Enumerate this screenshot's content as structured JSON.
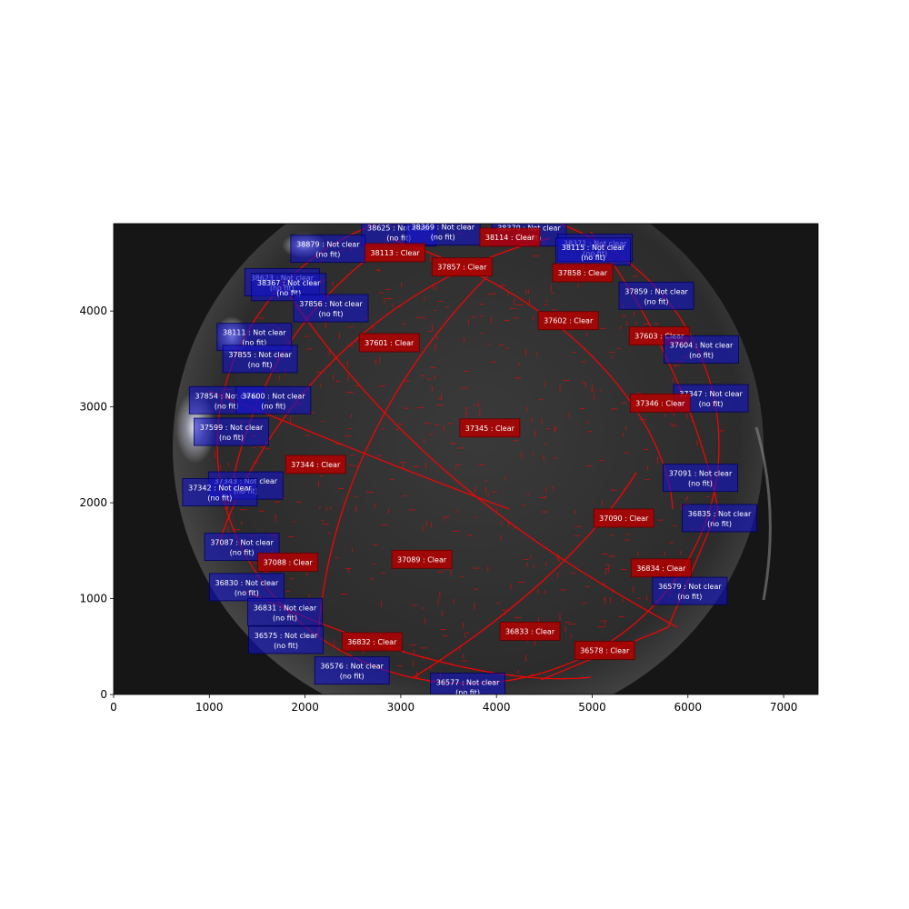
{
  "chart_data": {
    "type": "scatter",
    "title": "",
    "xlabel": "",
    "ylabel": "",
    "xlim": [
      0,
      7360
    ],
    "ylim": [
      0,
      4912
    ],
    "x_ticks": [
      0,
      1000,
      2000,
      3000,
      4000,
      5000,
      6000,
      7000
    ],
    "y_ticks": [
      0,
      1000,
      2000,
      3000,
      4000
    ],
    "grid": false,
    "colors": {
      "clear": "#b40000",
      "not_clear": "#1414c8",
      "grid_lines": "#ff0000",
      "sky_background": "#303030",
      "frame_background": "#161616"
    },
    "label_template": "{id} : {status}",
    "no_fit_text": "(no fit)",
    "labels": [
      {
        "id": "38625",
        "status": "Not clear",
        "fit": false,
        "x": 2980,
        "y": 4820
      },
      {
        "id": "38369",
        "status": "Not clear",
        "fit": false,
        "x": 3440,
        "y": 4830
      },
      {
        "id": "38370",
        "status": "Not clear",
        "fit": false,
        "x": 4340,
        "y": 4820
      },
      {
        "id": "38114",
        "status": "Clear",
        "fit": true,
        "x": 4140,
        "y": 4770
      },
      {
        "id": "38879",
        "status": "Not clear",
        "fit": false,
        "x": 2240,
        "y": 4650
      },
      {
        "id": "38113",
        "status": "Clear",
        "fit": true,
        "x": 2940,
        "y": 4610
      },
      {
        "id": "38371",
        "status": "Not clear",
        "fit": false,
        "x": 5030,
        "y": 4660
      },
      {
        "id": "38115",
        "status": "Not clear",
        "fit": false,
        "x": 5010,
        "y": 4620
      },
      {
        "id": "37857",
        "status": "Clear",
        "fit": true,
        "x": 3640,
        "y": 4460
      },
      {
        "id": "37858",
        "status": "Clear",
        "fit": true,
        "x": 4900,
        "y": 4400
      },
      {
        "id": "38623",
        "status": "Not clear",
        "fit": false,
        "x": 1760,
        "y": 4300
      },
      {
        "id": "38367",
        "status": "Not clear",
        "fit": false,
        "x": 1830,
        "y": 4250
      },
      {
        "id": "37859",
        "status": "Not clear",
        "fit": false,
        "x": 5670,
        "y": 4160
      },
      {
        "id": "37856",
        "status": "Not clear",
        "fit": false,
        "x": 2270,
        "y": 4030
      },
      {
        "id": "37602",
        "status": "Clear",
        "fit": true,
        "x": 4750,
        "y": 3900
      },
      {
        "id": "38111",
        "status": "Not clear",
        "fit": false,
        "x": 1470,
        "y": 3730
      },
      {
        "id": "37601",
        "status": "Clear",
        "fit": true,
        "x": 2880,
        "y": 3670
      },
      {
        "id": "37603",
        "status": "Clear",
        "fit": true,
        "x": 5700,
        "y": 3740
      },
      {
        "id": "37604",
        "status": "Not clear",
        "fit": false,
        "x": 6140,
        "y": 3600
      },
      {
        "id": "37855",
        "status": "Not clear",
        "fit": false,
        "x": 1530,
        "y": 3500
      },
      {
        "id": "37854",
        "status": "Not clear",
        "fit": false,
        "x": 1180,
        "y": 3070
      },
      {
        "id": "37600",
        "status": "Not clear",
        "fit": false,
        "x": 1670,
        "y": 3070
      },
      {
        "id": "37347",
        "status": "Not clear",
        "fit": false,
        "x": 6240,
        "y": 3090
      },
      {
        "id": "37346",
        "status": "Clear",
        "fit": true,
        "x": 5710,
        "y": 3040
      },
      {
        "id": "37599",
        "status": "Not clear",
        "fit": false,
        "x": 1230,
        "y": 2740
      },
      {
        "id": "37345",
        "status": "Clear",
        "fit": true,
        "x": 3930,
        "y": 2780
      },
      {
        "id": "37344",
        "status": "Clear",
        "fit": true,
        "x": 2110,
        "y": 2400
      },
      {
        "id": "37343",
        "status": "Not clear",
        "fit": false,
        "x": 1380,
        "y": 2180
      },
      {
        "id": "37342",
        "status": "Not clear",
        "fit": false,
        "x": 1110,
        "y": 2110
      },
      {
        "id": "37091",
        "status": "Not clear",
        "fit": false,
        "x": 6130,
        "y": 2260
      },
      {
        "id": "37090",
        "status": "Clear",
        "fit": true,
        "x": 5330,
        "y": 1840
      },
      {
        "id": "36835",
        "status": "Not clear",
        "fit": false,
        "x": 6330,
        "y": 1840
      },
      {
        "id": "37087",
        "status": "Not clear",
        "fit": false,
        "x": 1340,
        "y": 1540
      },
      {
        "id": "37088",
        "status": "Clear",
        "fit": true,
        "x": 1820,
        "y": 1380
      },
      {
        "id": "37089",
        "status": "Clear",
        "fit": true,
        "x": 3220,
        "y": 1410
      },
      {
        "id": "36834",
        "status": "Clear",
        "fit": true,
        "x": 5720,
        "y": 1320
      },
      {
        "id": "36830",
        "status": "Not clear",
        "fit": false,
        "x": 1390,
        "y": 1120
      },
      {
        "id": "36579",
        "status": "Not clear",
        "fit": false,
        "x": 6020,
        "y": 1080
      },
      {
        "id": "36831",
        "status": "Not clear",
        "fit": false,
        "x": 1790,
        "y": 860
      },
      {
        "id": "36833",
        "status": "Clear",
        "fit": true,
        "x": 4350,
        "y": 660
      },
      {
        "id": "36575",
        "status": "Not clear",
        "fit": false,
        "x": 1800,
        "y": 570
      },
      {
        "id": "36832",
        "status": "Clear",
        "fit": true,
        "x": 2700,
        "y": 550
      },
      {
        "id": "36578",
        "status": "Clear",
        "fit": true,
        "x": 5130,
        "y": 460
      },
      {
        "id": "36576",
        "status": "Not clear",
        "fit": false,
        "x": 2490,
        "y": 250
      },
      {
        "id": "36577",
        "status": "Not clear",
        "fit": false,
        "x": 3700,
        "y": 80
      }
    ]
  }
}
